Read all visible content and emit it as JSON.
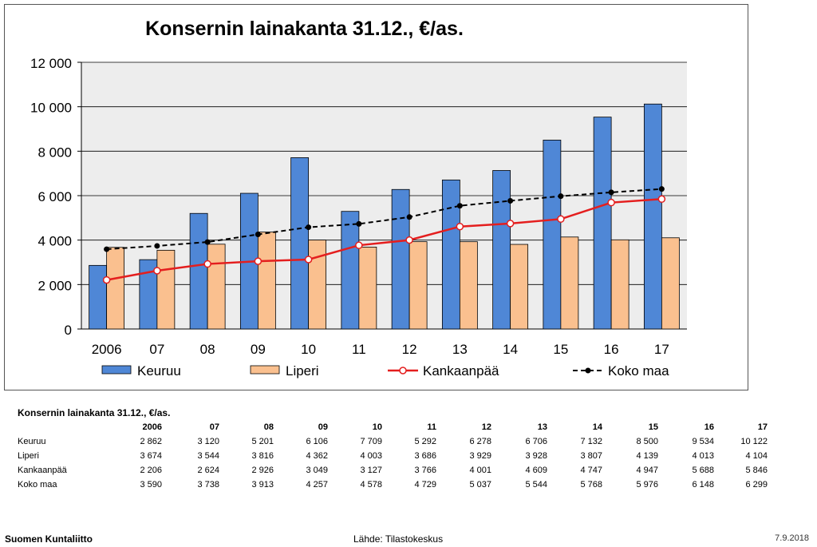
{
  "chart_data": {
    "type": "bar",
    "title": "Konsernin lainakanta 31.12., €/as.",
    "categories": [
      "2006",
      "07",
      "08",
      "09",
      "10",
      "11",
      "12",
      "13",
      "14",
      "15",
      "16",
      "17"
    ],
    "ylim": [
      0,
      12000
    ],
    "yticks": [
      "0",
      "2 000",
      "4 000",
      "6 000",
      "8 000",
      "10 000",
      "12 000"
    ],
    "ytick_values": [
      0,
      2000,
      4000,
      6000,
      8000,
      10000,
      12000
    ],
    "grid": "horizontal",
    "legend_position": "bottom",
    "series": [
      {
        "name": "Keuruu",
        "kind": "bar",
        "color": "#4F87D6",
        "values": [
          2862,
          3120,
          5201,
          6106,
          7709,
          5292,
          6278,
          6706,
          7132,
          8500,
          9534,
          10122
        ]
      },
      {
        "name": "Liperi",
        "kind": "bar",
        "color": "#FAC08F",
        "values": [
          3674,
          3544,
          3816,
          4362,
          4003,
          3686,
          3929,
          3928,
          3807,
          4139,
          4013,
          4104
        ]
      },
      {
        "name": "Kankaanpää",
        "kind": "line",
        "color": "#E41E1E",
        "values": [
          2206,
          2624,
          2926,
          3049,
          3127,
          3766,
          4001,
          4609,
          4747,
          4947,
          5688,
          5846
        ]
      },
      {
        "name": "Koko maa",
        "kind": "dashed-line",
        "color": "#000000",
        "values": [
          3590,
          3738,
          3913,
          4257,
          4578,
          4729,
          5037,
          5544,
          5768,
          5976,
          6148,
          6299
        ]
      }
    ]
  },
  "table": {
    "title": "Konsernin lainakanta 31.12., €/as.",
    "headers": [
      "2006",
      "07",
      "08",
      "09",
      "10",
      "11",
      "12",
      "13",
      "14",
      "15",
      "16",
      "17"
    ],
    "rows": [
      {
        "label": "Keuruu",
        "cells": [
          "2 862",
          "3 120",
          "5 201",
          "6 106",
          "7 709",
          "5 292",
          "6 278",
          "6 706",
          "7 132",
          "8 500",
          "9 534",
          "10 122"
        ]
      },
      {
        "label": "Liperi",
        "cells": [
          "3 674",
          "3 544",
          "3 816",
          "4 362",
          "4 003",
          "3 686",
          "3 929",
          "3 928",
          "3 807",
          "4 139",
          "4 013",
          "4 104"
        ]
      },
      {
        "label": "Kankaanpää",
        "cells": [
          "2 206",
          "2 624",
          "2 926",
          "3 049",
          "3 127",
          "3 766",
          "4 001",
          "4 609",
          "4 747",
          "4 947",
          "5 688",
          "5 846"
        ]
      },
      {
        "label": "Koko maa",
        "cells": [
          "3 590",
          "3 738",
          "3 913",
          "4 257",
          "4 578",
          "4 729",
          "5 037",
          "5 544",
          "5 768",
          "5 976",
          "6 148",
          "6 299"
        ]
      }
    ]
  },
  "footer": {
    "left": "Suomen Kuntaliitto",
    "source": "Lähde: Tilastokeskus",
    "date": "7.9.2018"
  }
}
